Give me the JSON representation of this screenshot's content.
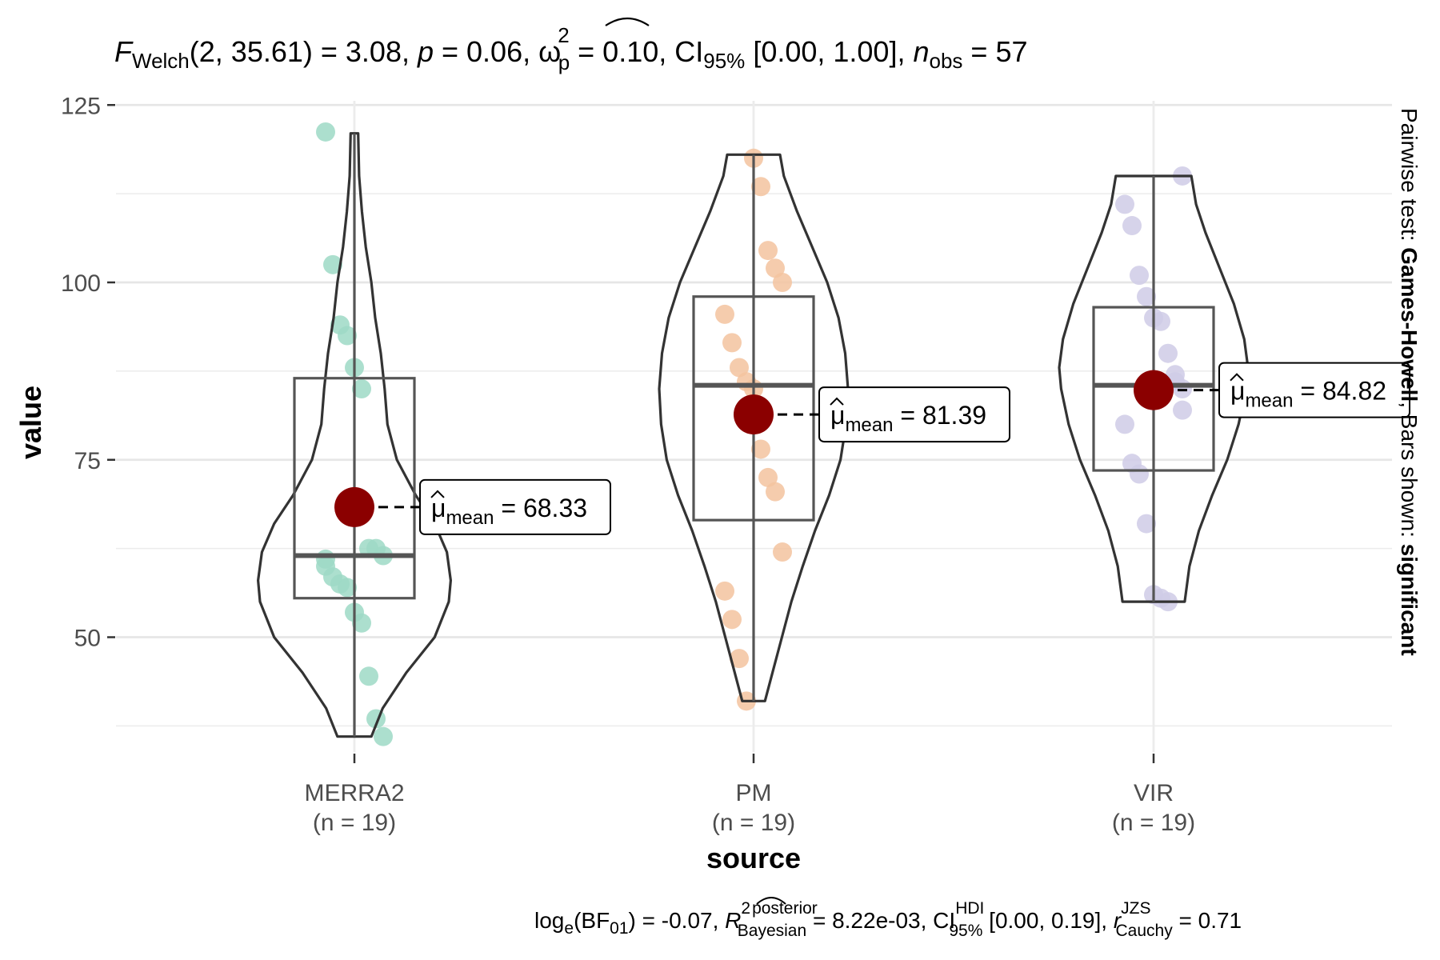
{
  "chart_data": {
    "type": "violin-box-scatter",
    "title_parts": {
      "f": "F",
      "f_sub": "Welch",
      "f_args": "(2, 35.61) = 3.08, ",
      "p": "p",
      "p_val": " = 0.06, ",
      "omega": "ω",
      "omega_sup": "2",
      "omega_sub": "p",
      "omega_val": " = 0.10, CI",
      "ci_sub": "95%",
      "ci_val": " [0.00, 1.00], ",
      "n": "n",
      "n_sub": "obs",
      "n_val": " = 57"
    },
    "caption_parts": {
      "log": "log",
      "log_sub": "e",
      "bf": "(BF",
      "bf_sub": "01",
      "bf_val": ") = -0.07, ",
      "r2": "R",
      "r2_sup": "2",
      "r2_sup2": "posterior",
      "r2_sub": "Bayesian",
      "r2_val": " = 8.22e-03, CI",
      "ci_sup": "HDI",
      "ci_sub": "95%",
      "ci_val": " [0.00, 0.19], ",
      "r": "r",
      "r_sup": "JZS",
      "r_sub": "Cauchy",
      "r_val": " = 0.71"
    },
    "side_caption": {
      "p1": "Pairwise test: ",
      "p2": "Games-Howell",
      "p3": ", Bars shown: ",
      "p4": "significant"
    },
    "xlabel": "source",
    "ylabel": "value",
    "ylim": [
      33,
      125
    ],
    "yticks": [
      50,
      75,
      100,
      125
    ],
    "grid": true,
    "groups": [
      {
        "name": "MERRA2",
        "n_label": "(n = 19)",
        "color": "#9ed9c5",
        "mean": 68.33,
        "mean_label": "68.33",
        "box": {
          "q1": 55.5,
          "median": 61.5,
          "q3": 86.5
        },
        "whisker": [
          36,
          121
        ],
        "points": [
          121.2,
          102.5,
          94,
          92.5,
          88,
          85,
          62.5,
          62.5,
          61.5,
          60,
          58.5,
          57.5,
          57,
          53.5,
          52,
          44.5,
          38.5,
          36,
          61.0
        ],
        "violin": [
          [
            36,
            0.18
          ],
          [
            40,
            0.3
          ],
          [
            45,
            0.55
          ],
          [
            50,
            0.85
          ],
          [
            55,
            1.0
          ],
          [
            58,
            1.02
          ],
          [
            62,
            0.98
          ],
          [
            66,
            0.85
          ],
          [
            70,
            0.65
          ],
          [
            75,
            0.45
          ],
          [
            80,
            0.35
          ],
          [
            85,
            0.32
          ],
          [
            90,
            0.28
          ],
          [
            95,
            0.22
          ],
          [
            100,
            0.18
          ],
          [
            105,
            0.12
          ],
          [
            110,
            0.08
          ],
          [
            115,
            0.05
          ],
          [
            121,
            0.04
          ]
        ]
      },
      {
        "name": "PM",
        "n_label": "(n = 19)",
        "color": "#f3c39f",
        "mean": 81.39,
        "mean_label": "81.39",
        "box": {
          "q1": 66.5,
          "median": 85.5,
          "q3": 98
        },
        "whisker": [
          41,
          118
        ],
        "points": [
          117.5,
          113.5,
          104.5,
          102,
          100,
          95.5,
          91.5,
          88,
          86,
          83,
          76.5,
          72.5,
          70.5,
          62,
          56.5,
          52.5,
          47,
          41,
          85.0
        ],
        "violin": [
          [
            41,
            0.12
          ],
          [
            45,
            0.2
          ],
          [
            50,
            0.3
          ],
          [
            55,
            0.4
          ],
          [
            60,
            0.52
          ],
          [
            65,
            0.65
          ],
          [
            70,
            0.8
          ],
          [
            75,
            0.92
          ],
          [
            80,
            0.98
          ],
          [
            85,
            1.0
          ],
          [
            90,
            0.97
          ],
          [
            95,
            0.9
          ],
          [
            100,
            0.78
          ],
          [
            105,
            0.62
          ],
          [
            110,
            0.46
          ],
          [
            115,
            0.32
          ],
          [
            118,
            0.28
          ]
        ]
      },
      {
        "name": "VIR",
        "n_label": "(n = 19)",
        "color": "#cfcbe6",
        "mean": 84.82,
        "mean_label": "84.82",
        "box": {
          "q1": 73.5,
          "median": 85.5,
          "q3": 96.5
        },
        "whisker": [
          55,
          115
        ],
        "points": [
          115,
          111,
          108,
          101,
          98,
          95,
          94.5,
          90,
          87,
          82,
          80,
          74.5,
          73,
          66,
          56,
          55.5,
          55,
          86,
          85
        ],
        "violin": [
          [
            55,
            0.33
          ],
          [
            60,
            0.38
          ],
          [
            65,
            0.48
          ],
          [
            70,
            0.62
          ],
          [
            75,
            0.78
          ],
          [
            80,
            0.9
          ],
          [
            85,
            0.98
          ],
          [
            88,
            1.0
          ],
          [
            92,
            0.96
          ],
          [
            97,
            0.85
          ],
          [
            102,
            0.7
          ],
          [
            107,
            0.55
          ],
          [
            111,
            0.45
          ],
          [
            115,
            0.4
          ]
        ]
      }
    ],
    "mean_symbol": "μ",
    "mean_sub": "mean",
    "mean_eq": " = ",
    "mean_color": "#8b0000"
  }
}
